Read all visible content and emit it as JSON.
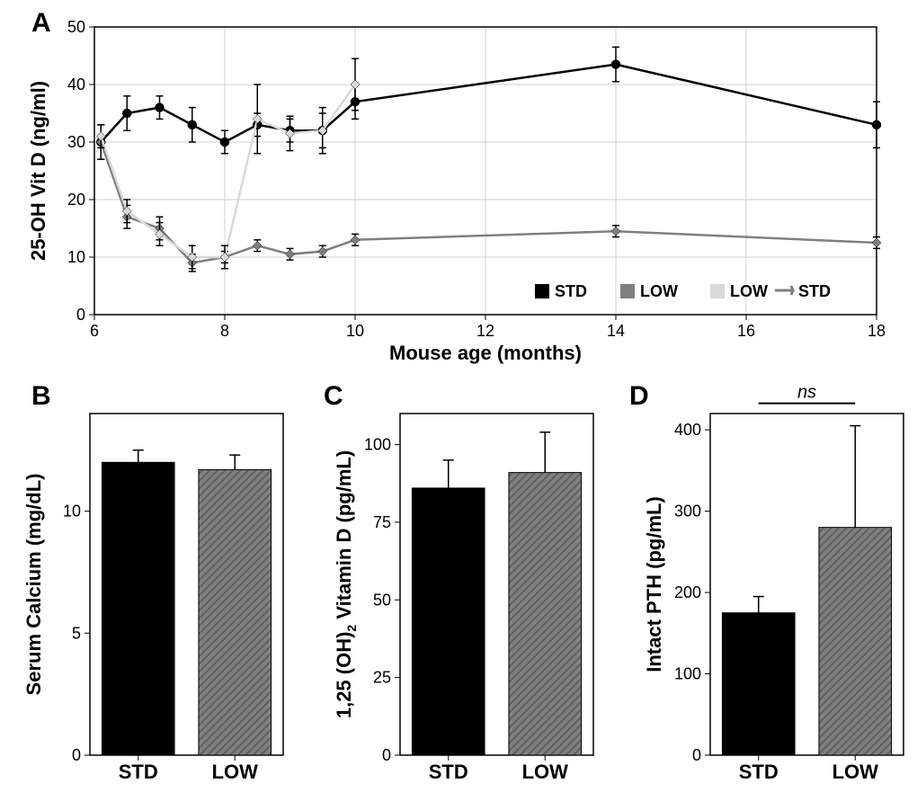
{
  "panelA": {
    "label": "A",
    "type": "line",
    "xlabel": "Mouse age (months)",
    "ylabel": "25-OH Vit D (ng/ml)",
    "xlim": [
      6,
      18
    ],
    "ylim": [
      0,
      50
    ],
    "xticks": [
      6,
      8,
      10,
      12,
      14,
      16,
      18
    ],
    "yticks": [
      0,
      10,
      20,
      30,
      40,
      50
    ],
    "label_fontsize": 22,
    "tick_fontsize": 18,
    "panel_label_fontsize": 30,
    "grid_color": "#cfcfcf",
    "background_color": "#ffffff",
    "frame_color": "#000000",
    "line_width": 2.5,
    "marker_size": 5,
    "series": [
      {
        "name": "STD",
        "color": "#000000",
        "marker": "circle",
        "points": [
          {
            "x": 6.1,
            "y": 30,
            "err": 3
          },
          {
            "x": 6.5,
            "y": 35,
            "err": 3
          },
          {
            "x": 7.0,
            "y": 36,
            "err": 2
          },
          {
            "x": 7.5,
            "y": 33,
            "err": 3
          },
          {
            "x": 8.0,
            "y": 30,
            "err": 2
          },
          {
            "x": 8.5,
            "y": 33,
            "err": 2
          },
          {
            "x": 9.0,
            "y": 32,
            "err": 2
          },
          {
            "x": 9.5,
            "y": 32,
            "err": 3
          },
          {
            "x": 10.0,
            "y": 37,
            "err": 3
          },
          {
            "x": 14.0,
            "y": 43.5,
            "err": 3
          },
          {
            "x": 18.0,
            "y": 33,
            "err": 4
          }
        ]
      },
      {
        "name": "LOW",
        "color": "#7f7f7f",
        "marker": "diamond",
        "points": [
          {
            "x": 6.1,
            "y": 30,
            "err": 3
          },
          {
            "x": 6.5,
            "y": 17,
            "err": 2
          },
          {
            "x": 7.0,
            "y": 15,
            "err": 2
          },
          {
            "x": 7.5,
            "y": 9,
            "err": 1.5
          },
          {
            "x": 8.0,
            "y": 10,
            "err": 1
          },
          {
            "x": 8.5,
            "y": 12,
            "err": 1
          },
          {
            "x": 9.0,
            "y": 10.5,
            "err": 1
          },
          {
            "x": 9.5,
            "y": 11,
            "err": 1
          },
          {
            "x": 10.0,
            "y": 13,
            "err": 1
          },
          {
            "x": 14.0,
            "y": 14.5,
            "err": 1
          },
          {
            "x": 18.0,
            "y": 12.5,
            "err": 1
          }
        ]
      },
      {
        "name": "LOW→STD",
        "color": "#d9d9d9",
        "marker": "diamond",
        "points": [
          {
            "x": 6.1,
            "y": 31,
            "err": 2
          },
          {
            "x": 6.5,
            "y": 18,
            "err": 2
          },
          {
            "x": 7.0,
            "y": 14,
            "err": 2
          },
          {
            "x": 7.5,
            "y": 10,
            "err": 2
          },
          {
            "x": 8.0,
            "y": 10,
            "err": 2
          },
          {
            "x": 8.5,
            "y": 34,
            "err": 6
          },
          {
            "x": 9.0,
            "y": 31.5,
            "err": 3
          },
          {
            "x": 9.5,
            "y": 32,
            "err": 4
          },
          {
            "x": 10.0,
            "y": 40,
            "err": 4.5
          }
        ]
      }
    ],
    "legend": {
      "position": "bottom-right",
      "items": [
        {
          "label": "STD",
          "color": "#000000"
        },
        {
          "label": "LOW",
          "color": "#7f7f7f"
        },
        {
          "label": "LOW",
          "color": "#d9d9d9",
          "arrow": true,
          "label2": "STD"
        }
      ]
    }
  },
  "panelB": {
    "label": "B",
    "type": "bar",
    "ylabel": "Serum Calcium (mg/dL)",
    "categories": [
      "STD",
      "LOW"
    ],
    "values": [
      12.0,
      11.7
    ],
    "errors": [
      0.5,
      0.6
    ],
    "ylim": [
      0,
      14
    ],
    "yticks": [
      0,
      5,
      10
    ],
    "bar_colors": [
      "#000000",
      "#7f7f7f"
    ],
    "hatched": [
      false,
      true
    ],
    "bar_width": 0.75,
    "background_color": "#ffffff",
    "frame_color": "#000000"
  },
  "panelC": {
    "label": "C",
    "type": "bar",
    "ylabel": "1,25 (OH)₂ Vitamin D (pg/mL)",
    "categories": [
      "STD",
      "LOW"
    ],
    "values": [
      86,
      91
    ],
    "errors": [
      9,
      13
    ],
    "ylim": [
      0,
      110
    ],
    "yticks": [
      0,
      25,
      50,
      75,
      100
    ],
    "bar_colors": [
      "#000000",
      "#7f7f7f"
    ],
    "hatched": [
      false,
      true
    ],
    "bar_width": 0.75,
    "background_color": "#ffffff",
    "frame_color": "#000000"
  },
  "panelD": {
    "label": "D",
    "type": "bar",
    "ylabel": "Intact PTH (pg/mL)",
    "categories": [
      "STD",
      "LOW"
    ],
    "values": [
      175,
      280
    ],
    "errors": [
      20,
      125
    ],
    "ylim": [
      0,
      420
    ],
    "yticks": [
      0,
      100,
      200,
      300,
      400
    ],
    "bar_colors": [
      "#000000",
      "#7f7f7f"
    ],
    "hatched": [
      false,
      true
    ],
    "bar_width": 0.75,
    "background_color": "#ffffff",
    "frame_color": "#000000",
    "ns_annotation": "ns"
  }
}
